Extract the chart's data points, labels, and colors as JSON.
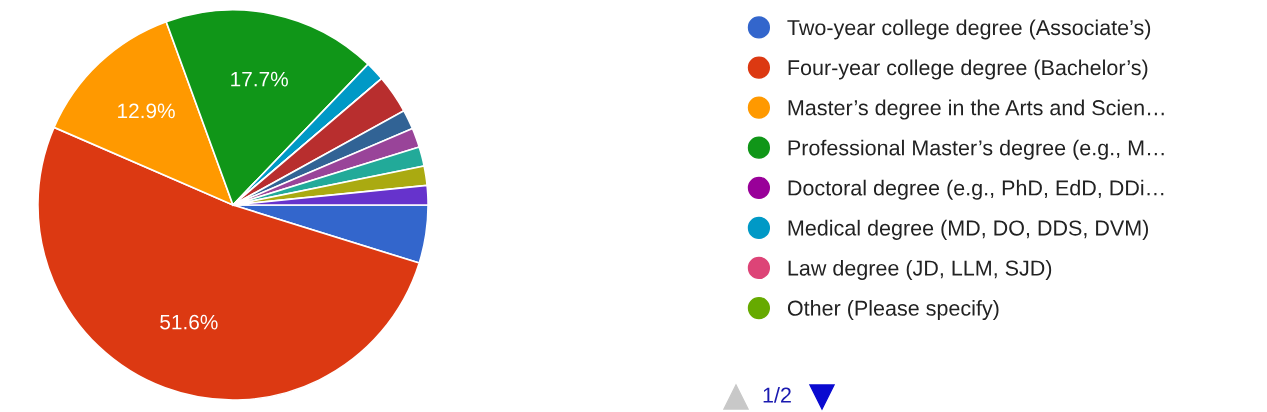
{
  "chart_data": {
    "type": "pie",
    "categories": [
      "Two-year college degree (Associate’s)",
      "Four-year college degree (Bachelor’s)",
      "Master’s degree in the Arts and Scien…",
      "Professional Master’s degree (e.g., M…",
      "Doctoral degree (e.g., PhD, EdD, DDi…",
      "Medical degree (MD, DO, DDS, DVM)",
      "Law degree (JD, LLM, SJD)",
      "Other (Please specify)",
      null,
      null,
      null,
      null,
      null,
      null
    ],
    "values": [
      4.8,
      51.6,
      12.9,
      17.7,
      0,
      1.6,
      0,
      0,
      3.2,
      1.6,
      1.6,
      1.6,
      1.6,
      1.6
    ],
    "colors": [
      "#3366cc",
      "#dc3912",
      "#ff9900",
      "#109618",
      "#990099",
      "#0099c6",
      "#dd4477",
      "#66aa00",
      "#b82e2e",
      "#316395",
      "#994499",
      "#22aa99",
      "#aaaa11",
      "#6633cc"
    ],
    "value_labels": [
      null,
      "51.6%",
      "12.9%",
      "17.7%",
      null,
      null,
      null,
      null,
      null,
      null,
      null,
      null,
      null,
      null
    ],
    "legend": "right",
    "annotations": [
      "1/2"
    ]
  }
}
